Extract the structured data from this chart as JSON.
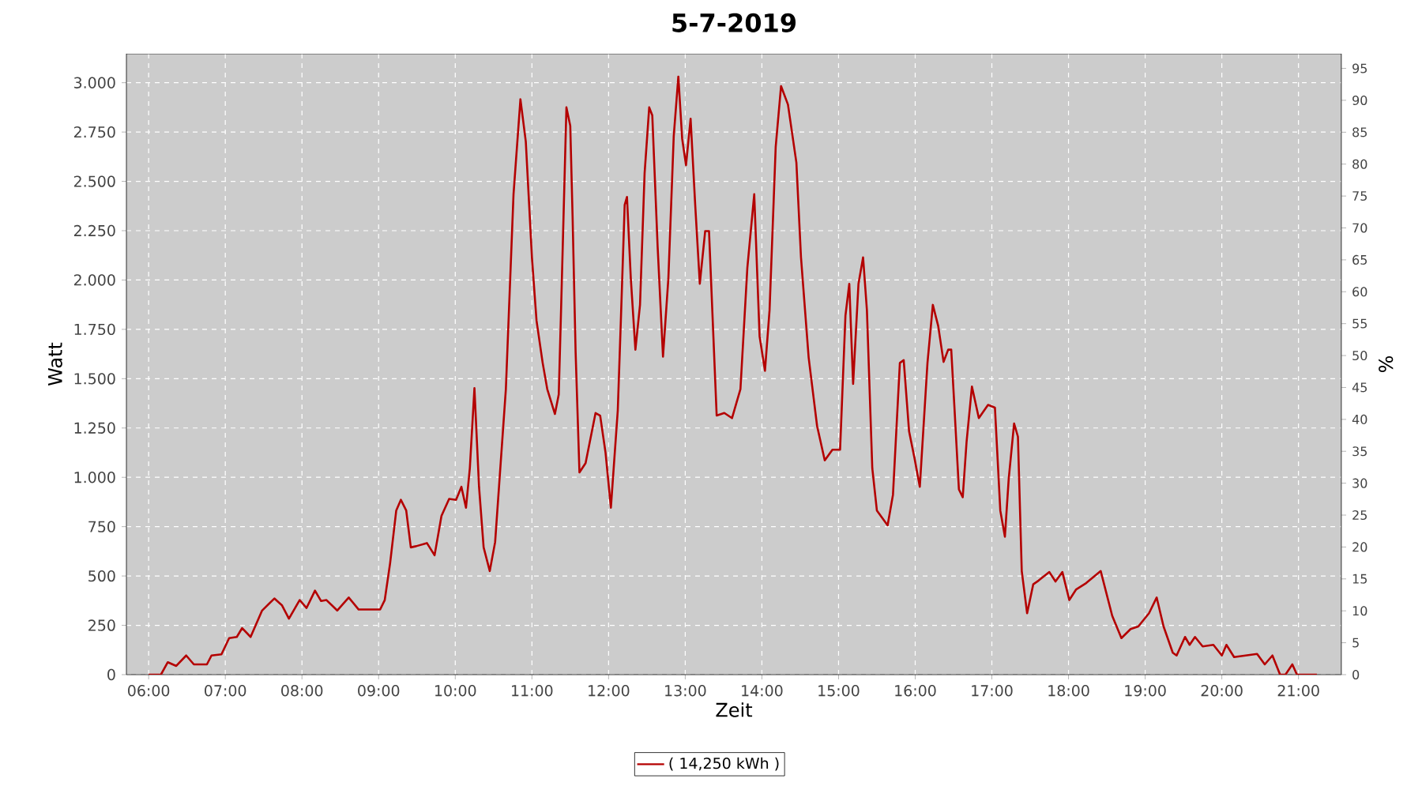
{
  "chart_data": {
    "type": "line",
    "title": "5-7-2019",
    "xlabel": "Zeit",
    "ylabel": "Watt",
    "y2label": "%",
    "x": [
      6.0,
      6.16,
      6.25,
      6.36,
      6.49,
      6.59,
      6.76,
      6.82,
      6.95,
      7.05,
      7.15,
      7.22,
      7.33,
      7.48,
      7.64,
      7.74,
      7.83,
      7.97,
      8.06,
      8.17,
      8.25,
      8.32,
      8.46,
      8.61,
      8.74,
      9.02,
      9.08,
      9.15,
      9.23,
      9.29,
      9.36,
      9.42,
      9.49,
      9.63,
      9.73,
      9.82,
      9.92,
      10.01,
      10.08,
      10.14,
      10.19,
      10.25,
      10.31,
      10.37,
      10.45,
      10.52,
      10.66,
      10.76,
      10.85,
      10.92,
      11.0,
      11.06,
      11.14,
      11.2,
      11.3,
      11.35,
      11.38,
      11.45,
      11.5,
      11.53,
      11.57,
      11.62,
      11.7,
      11.83,
      11.89,
      11.96,
      12.03,
      12.12,
      12.16,
      12.21,
      12.24,
      12.29,
      12.35,
      12.41,
      12.47,
      12.53,
      12.57,
      12.64,
      12.71,
      12.78,
      12.85,
      12.91,
      12.96,
      13.01,
      13.07,
      13.13,
      13.19,
      13.26,
      13.31,
      13.41,
      13.51,
      13.61,
      13.72,
      13.81,
      13.9,
      13.97,
      14.04,
      14.1,
      14.18,
      14.25,
      14.34,
      14.45,
      14.51,
      14.61,
      14.72,
      14.82,
      14.92,
      15.02,
      15.09,
      15.14,
      15.19,
      15.26,
      15.32,
      15.37,
      15.44,
      15.5,
      15.64,
      15.71,
      15.8,
      15.85,
      15.92,
      15.99,
      16.06,
      16.16,
      16.23,
      16.3,
      16.37,
      16.43,
      16.47,
      16.51,
      16.57,
      16.62,
      16.67,
      16.74,
      16.83,
      16.95,
      17.04,
      17.11,
      17.17,
      17.22,
      17.29,
      17.34,
      17.39,
      17.46,
      17.54,
      17.61,
      17.75,
      17.83,
      17.92,
      18.01,
      18.1,
      18.23,
      18.42,
      18.57,
      18.69,
      18.81,
      18.91,
      19.05,
      19.15,
      19.24,
      19.36,
      19.41,
      19.52,
      19.58,
      19.65,
      19.75,
      19.89,
      20.0,
      20.06,
      20.16,
      20.46,
      20.56,
      20.66,
      20.76,
      20.83,
      20.92,
      20.98,
      21.24
    ],
    "series": [
      {
        "name": "( 14,250 kWh )",
        "color": "#b40000",
        "values": [
          0,
          0,
          63,
          44,
          97,
          52,
          52,
          97,
          103,
          185,
          191,
          236,
          191,
          325,
          386,
          351,
          284,
          378,
          338,
          426,
          373,
          378,
          325,
          391,
          330,
          330,
          378,
          565,
          832,
          886,
          832,
          645,
          651,
          667,
          605,
          805,
          891,
          886,
          952,
          846,
          1046,
          1452,
          952,
          645,
          525,
          672,
          1447,
          2435,
          2916,
          2702,
          2115,
          1794,
          1580,
          1447,
          1321,
          1420,
          1847,
          2875,
          2782,
          2328,
          1634,
          1025,
          1072,
          1326,
          1313,
          1126,
          846,
          1340,
          1794,
          2381,
          2421,
          2008,
          1647,
          1874,
          2542,
          2875,
          2835,
          2168,
          1612,
          2008,
          2729,
          3031,
          2716,
          2582,
          2817,
          2381,
          1981,
          2248,
          2248,
          1313,
          1326,
          1300,
          1447,
          2061,
          2435,
          1714,
          1540,
          1847,
          2675,
          2983,
          2889,
          2595,
          2115,
          1607,
          1260,
          1086,
          1140,
          1140,
          1820,
          1981,
          1474,
          1981,
          2115,
          1847,
          1046,
          832,
          757,
          912,
          1580,
          1594,
          1233,
          1099,
          952,
          1580,
          1874,
          1767,
          1585,
          1647,
          1647,
          1367,
          939,
          899,
          1180,
          1460,
          1300,
          1367,
          1353,
          832,
          699,
          993,
          1273,
          1206,
          525,
          311,
          458,
          477,
          520,
          472,
          520,
          378,
          432,
          464,
          525,
          298,
          185,
          231,
          244,
          311,
          391,
          244,
          111,
          97,
          191,
          151,
          191,
          143,
          151,
          97,
          151,
          89,
          105,
          52,
          97,
          0,
          0,
          52,
          0,
          0
        ]
      }
    ],
    "xlim": [
      5.71,
      21.56
    ],
    "ylim": [
      0,
      3147
    ],
    "y2lim": [
      0,
      97.3
    ],
    "xticks": [
      {
        "value": 6,
        "label": "06:00"
      },
      {
        "value": 7,
        "label": "07:00"
      },
      {
        "value": 8,
        "label": "08:00"
      },
      {
        "value": 9,
        "label": "09:00"
      },
      {
        "value": 10,
        "label": "10:00"
      },
      {
        "value": 11,
        "label": "11:00"
      },
      {
        "value": 12,
        "label": "12:00"
      },
      {
        "value": 13,
        "label": "13:00"
      },
      {
        "value": 14,
        "label": "14:00"
      },
      {
        "value": 15,
        "label": "15:00"
      },
      {
        "value": 16,
        "label": "16:00"
      },
      {
        "value": 17,
        "label": "17:00"
      },
      {
        "value": 18,
        "label": "18:00"
      },
      {
        "value": 19,
        "label": "19:00"
      },
      {
        "value": 20,
        "label": "20:00"
      },
      {
        "value": 21,
        "label": "21:00"
      }
    ],
    "yticks": [
      0,
      250,
      500,
      750,
      {
        "value": 1000,
        "label": "1.000"
      },
      {
        "value": 1250,
        "label": "1.250"
      },
      {
        "value": 1500,
        "label": "1.500"
      },
      {
        "value": 1750,
        "label": "1.750"
      },
      {
        "value": 2000,
        "label": "2.000"
      },
      {
        "value": 2250,
        "label": "2.250"
      },
      {
        "value": 2500,
        "label": "2.500"
      },
      {
        "value": 2750,
        "label": "2.750"
      },
      {
        "value": 3000,
        "label": "3.000"
      }
    ],
    "y2ticks": [
      0,
      5,
      10,
      15,
      20,
      25,
      30,
      35,
      40,
      45,
      50,
      55,
      60,
      65,
      70,
      75,
      80,
      85,
      90,
      95
    ],
    "grid": true,
    "legend": "bottom",
    "marker": "none",
    "line_style": "solid"
  }
}
